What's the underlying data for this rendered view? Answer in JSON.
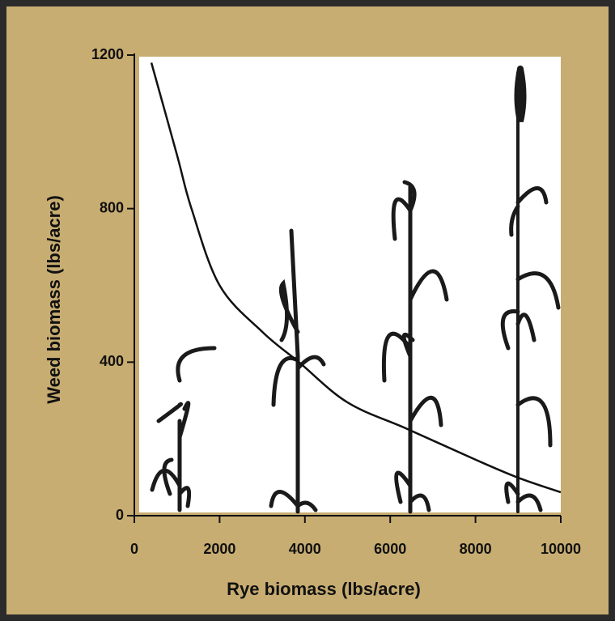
{
  "chart_data": {
    "type": "line",
    "xlabel": "Rye biomass (lbs/acre)",
    "ylabel": "Weed biomass (lbs/acre)",
    "x": [
      400,
      1000,
      1340,
      2000,
      3000,
      3860,
      5000,
      6400,
      8000,
      9000,
      10000
    ],
    "values": [
      1180,
      940,
      800,
      600,
      479,
      400,
      295,
      226,
      146,
      99,
      61
    ],
    "color": "#111111",
    "xlim": [
      0,
      10000
    ],
    "xticks": [
      0,
      2000,
      4000,
      6000,
      8000,
      10000
    ],
    "ylim": [
      0,
      1200
    ],
    "yticks": [
      0,
      400,
      800,
      1200
    ]
  }
}
